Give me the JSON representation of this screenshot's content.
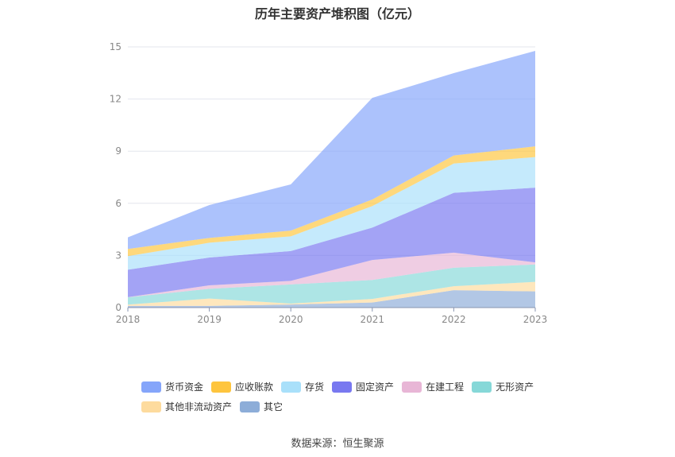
{
  "chart_data": {
    "type": "area",
    "stacked": true,
    "title": "历年主要资产堆积图（亿元）",
    "xlabel": "",
    "ylabel": "",
    "ylim": [
      0,
      15
    ],
    "yticks": [
      "0",
      "3",
      "6",
      "9",
      "12",
      "15"
    ],
    "x": [
      "2018",
      "2019",
      "2020",
      "2021",
      "2022",
      "2023"
    ],
    "grid": true,
    "legend_position": "bottom",
    "series": [
      {
        "name": "其它",
        "color": "#8dadd8",
        "values": [
          0.1,
          0.1,
          0.18,
          0.29,
          1.0,
          0.93
        ]
      },
      {
        "name": "其他非流动资产",
        "color": "#fddb9e",
        "values": [
          0.07,
          0.42,
          0.05,
          0.21,
          0.23,
          0.55
        ]
      },
      {
        "name": "无形资产",
        "color": "#86d8d8",
        "values": [
          0.42,
          0.56,
          1.1,
          1.09,
          1.06,
          1.0
        ]
      },
      {
        "name": "在建工程",
        "color": "#e8b6d6",
        "values": [
          0.01,
          0.2,
          0.21,
          1.15,
          0.87,
          0.12
        ]
      },
      {
        "name": "固定资产",
        "color": "#7878f0",
        "values": [
          1.58,
          1.6,
          1.71,
          1.86,
          3.44,
          4.3
        ]
      },
      {
        "name": "存货",
        "color": "#a9e0fa",
        "values": [
          0.78,
          0.85,
          0.85,
          1.24,
          1.69,
          1.76
        ]
      },
      {
        "name": "应收账款",
        "color": "#fec53e",
        "values": [
          0.41,
          0.28,
          0.33,
          0.38,
          0.46,
          0.62
        ]
      },
      {
        "name": "货币资金",
        "color": "#85a5fa",
        "values": [
          0.67,
          1.89,
          2.66,
          5.85,
          4.74,
          5.49
        ]
      }
    ],
    "legend_order": [
      "货币资金",
      "应收账款",
      "存货",
      "固定资产",
      "在建工程",
      "无形资产",
      "其他非流动资产",
      "其它"
    ]
  },
  "source": "数据来源：恒生聚源"
}
